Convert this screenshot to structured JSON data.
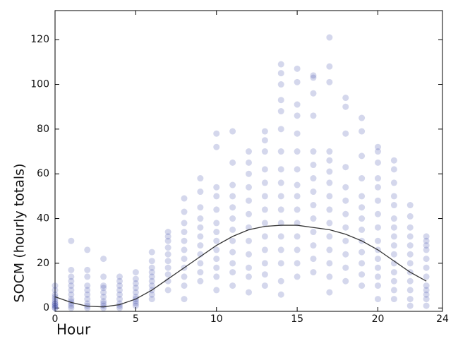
{
  "chart_data": {
    "type": "scatter",
    "xlabel": "Hour",
    "ylabel": "SOCM (hourly totals)",
    "xlim": [
      0,
      24
    ],
    "ylim": [
      -1.5,
      133
    ],
    "xticks": [
      0,
      5,
      10,
      15,
      20,
      24
    ],
    "yticks": [
      0,
      20,
      40,
      60,
      80,
      100,
      120
    ],
    "point_color": "#3b47a8",
    "groups": [
      {
        "x": 0,
        "values": [
          0,
          1,
          2,
          3,
          4,
          5,
          6,
          8,
          10,
          0,
          1,
          2
        ]
      },
      {
        "x": 1,
        "values": [
          0,
          2,
          4,
          6,
          8,
          10,
          12,
          14,
          17,
          30,
          1,
          3
        ]
      },
      {
        "x": 2,
        "values": [
          0,
          1,
          2,
          4,
          6,
          8,
          10,
          14,
          17,
          26
        ]
      },
      {
        "x": 3,
        "values": [
          0,
          1,
          2,
          3,
          5,
          7,
          9,
          10,
          14,
          22
        ]
      },
      {
        "x": 4,
        "values": [
          0,
          1,
          2,
          4,
          6,
          8,
          10,
          12,
          14
        ]
      },
      {
        "x": 5,
        "values": [
          1,
          3,
          5,
          7,
          9,
          11,
          13,
          16,
          2,
          4
        ]
      },
      {
        "x": 6,
        "values": [
          4,
          6,
          8,
          10,
          12,
          14,
          16,
          18,
          21,
          25
        ]
      },
      {
        "x": 7,
        "values": [
          8,
          12,
          15,
          18,
          21,
          24,
          27,
          30,
          32,
          34
        ]
      },
      {
        "x": 8,
        "values": [
          4,
          10,
          14,
          18,
          22,
          26,
          30,
          34,
          38,
          43,
          49
        ]
      },
      {
        "x": 9,
        "values": [
          12,
          16,
          20,
          24,
          28,
          32,
          36,
          40,
          45,
          52,
          58
        ]
      },
      {
        "x": 10,
        "values": [
          8,
          14,
          18,
          22,
          26,
          30,
          34,
          38,
          44,
          50,
          54,
          72,
          78
        ]
      },
      {
        "x": 11,
        "values": [
          10,
          16,
          20,
          25,
          30,
          35,
          40,
          45,
          50,
          55,
          65,
          79
        ]
      },
      {
        "x": 12,
        "values": [
          7,
          14,
          18,
          24,
          30,
          36,
          42,
          48,
          54,
          60,
          65,
          70
        ]
      },
      {
        "x": 13,
        "values": [
          10,
          15,
          20,
          26,
          32,
          38,
          44,
          50,
          56,
          62,
          70,
          75,
          79
        ]
      },
      {
        "x": 14,
        "values": [
          6,
          12,
          20,
          26,
          32,
          38,
          44,
          50,
          56,
          62,
          70,
          80,
          88,
          93,
          100,
          105,
          109
        ]
      },
      {
        "x": 15,
        "values": [
          14,
          20,
          26,
          32,
          38,
          44,
          50,
          55,
          62,
          70,
          78,
          86,
          91,
          101,
          107
        ]
      },
      {
        "x": 16,
        "values": [
          16,
          22,
          28,
          34,
          40,
          46,
          52,
          58,
          64,
          70,
          86,
          96,
          103,
          104
        ]
      },
      {
        "x": 17,
        "values": [
          7,
          14,
          20,
          26,
          32,
          38,
          44,
          50,
          56,
          61,
          66,
          70,
          101,
          108,
          121
        ]
      },
      {
        "x": 18,
        "values": [
          12,
          18,
          24,
          30,
          36,
          42,
          48,
          54,
          63,
          78,
          90,
          94
        ]
      },
      {
        "x": 19,
        "values": [
          10,
          15,
          20,
          25,
          30,
          35,
          40,
          45,
          50,
          58,
          68,
          79,
          85
        ]
      },
      {
        "x": 20,
        "values": [
          4,
          10,
          14,
          18,
          22,
          26,
          30,
          36,
          42,
          48,
          54,
          58,
          65,
          70,
          72
        ]
      },
      {
        "x": 21,
        "values": [
          4,
          8,
          12,
          16,
          20,
          24,
          28,
          32,
          36,
          40,
          46,
          50,
          56,
          62,
          66
        ]
      },
      {
        "x": 22,
        "values": [
          1,
          4,
          8,
          12,
          16,
          20,
          24,
          28,
          32,
          36,
          41,
          46
        ]
      },
      {
        "x": 23,
        "values": [
          1,
          4,
          6,
          8,
          10,
          14,
          18,
          22,
          26,
          28,
          30,
          32
        ]
      }
    ],
    "fit": {
      "color": "#333333",
      "x": [
        0,
        1,
        2,
        3,
        4,
        5,
        6,
        7,
        8,
        9,
        10,
        11,
        12,
        13,
        14,
        15,
        16,
        17,
        18,
        19,
        20,
        21,
        22,
        23
      ],
      "values": [
        5,
        2.5,
        0.8,
        0.5,
        1.5,
        4,
        8,
        13,
        18,
        23,
        28,
        32,
        35,
        36.5,
        37,
        37,
        36,
        35,
        33,
        30,
        26,
        21,
        16,
        12
      ]
    }
  }
}
